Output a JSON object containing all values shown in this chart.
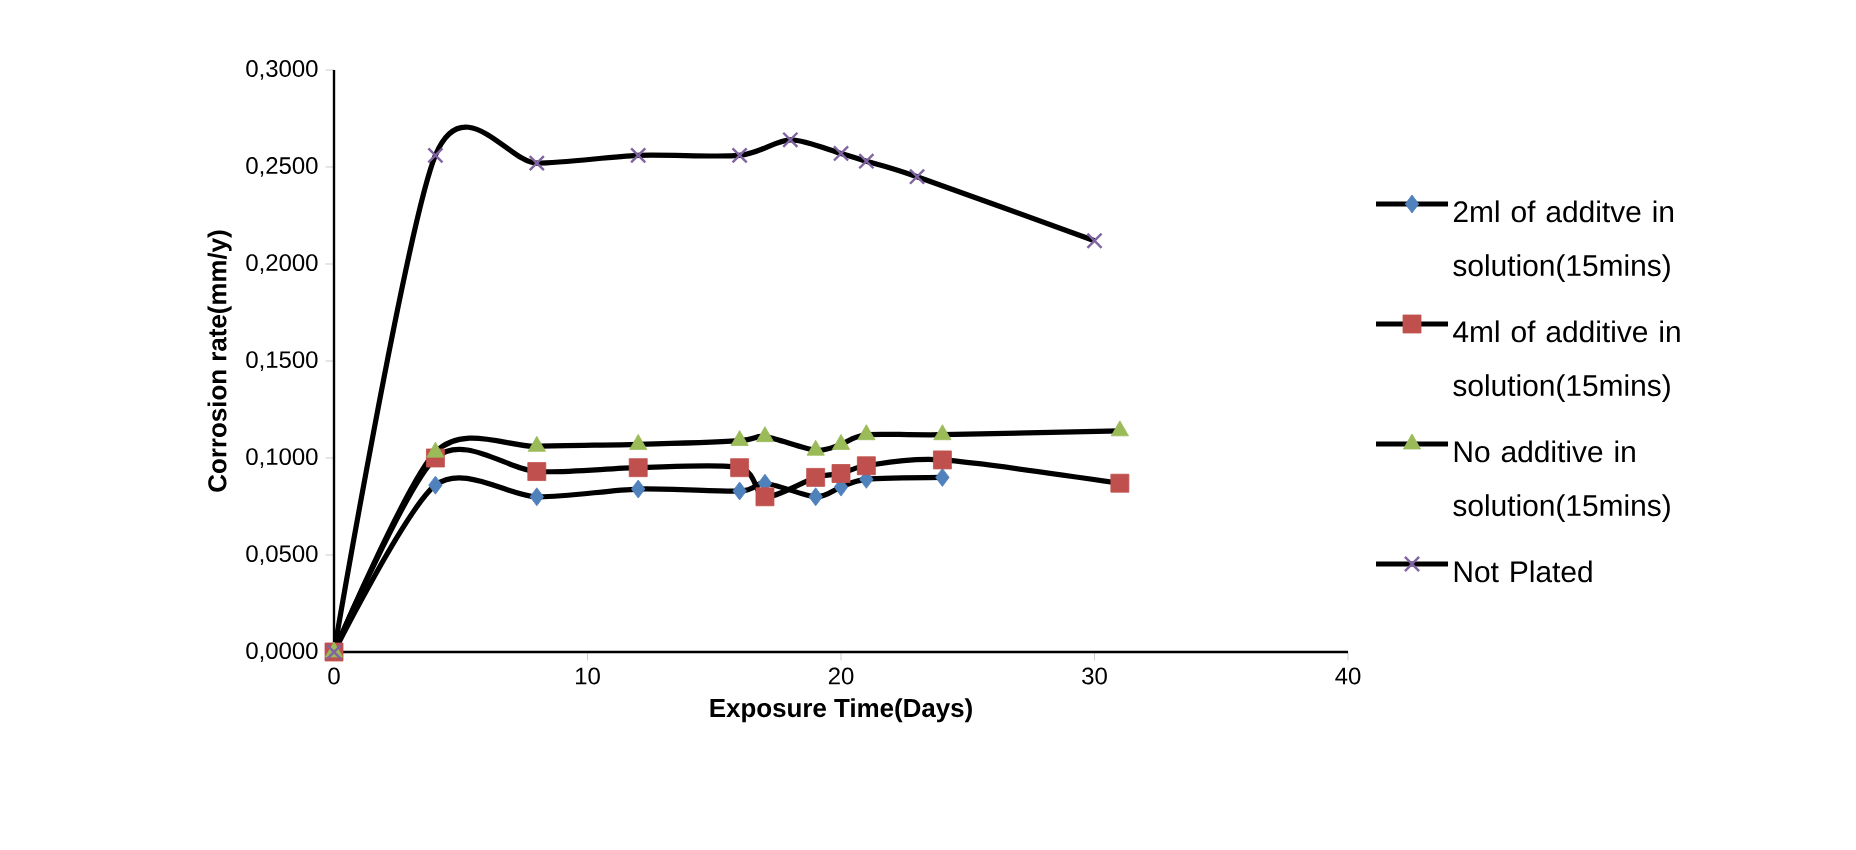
{
  "chart_data": {
    "type": "line",
    "xlabel": "Exposure Time(Days)",
    "ylabel": "Corrosion rate(mm/y)",
    "xlim": [
      0,
      40
    ],
    "xticks": [
      0,
      10,
      20,
      30,
      40
    ],
    "ylim": [
      0,
      0.3
    ],
    "yticks": [
      {
        "value": 0,
        "label": "0,0000"
      },
      {
        "value": 0.05,
        "label": "0,0500"
      },
      {
        "value": 0.1,
        "label": "0,1000"
      },
      {
        "value": 0.15,
        "label": "0,1500"
      },
      {
        "value": 0.2,
        "label": "0,2000"
      },
      {
        "value": 0.25,
        "label": "0,2500"
      },
      {
        "value": 0.3,
        "label": "0,3000"
      }
    ],
    "grid": false,
    "legend": "right",
    "line_style": "solid",
    "series": [
      {
        "name": "2ml of additve in solution(15mins)",
        "color": "#4f81bd",
        "marker": "diamond",
        "x": [
          0,
          4,
          8,
          12,
          16,
          17,
          19,
          20,
          21,
          24
        ],
        "values": [
          0,
          0.086,
          0.08,
          0.084,
          0.083,
          0.087,
          0.08,
          0.085,
          0.089,
          0.09
        ]
      },
      {
        "name": "4ml of additive in solution(15mins)",
        "color": "#c0504d",
        "marker": "square",
        "x": [
          0,
          4,
          8,
          12,
          16,
          17,
          19,
          20,
          21,
          24,
          31
        ],
        "values": [
          0,
          0.1,
          0.093,
          0.095,
          0.095,
          0.08,
          0.09,
          0.092,
          0.096,
          0.099,
          0.087
        ]
      },
      {
        "name": "No additive in solution(15mins)",
        "color": "#9bbb59",
        "marker": "triangle",
        "x": [
          0,
          4,
          8,
          12,
          16,
          17,
          19,
          20,
          21,
          24,
          31
        ],
        "values": [
          0,
          0.103,
          0.106,
          0.107,
          0.109,
          0.111,
          0.104,
          0.107,
          0.112,
          0.112,
          0.114
        ]
      },
      {
        "name": "Not Plated",
        "color": "#8064a2",
        "marker": "cross",
        "x": [
          0,
          4,
          8,
          12,
          16,
          18,
          20,
          21,
          23,
          30
        ],
        "values": [
          0,
          0.256,
          0.252,
          0.256,
          0.256,
          0.264,
          0.257,
          0.253,
          0.245,
          0.212
        ]
      }
    ]
  }
}
